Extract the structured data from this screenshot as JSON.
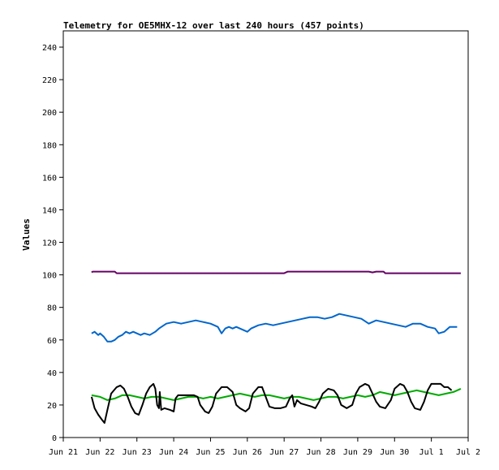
{
  "chart_data": {
    "type": "line",
    "title": "Telemetry for OE5MHX-12 over last 240 hours (457 points)",
    "xlabel": "",
    "ylabel": "Values",
    "xlim": [
      0,
      11
    ],
    "ylim": [
      0,
      250
    ],
    "x_ticks": [
      {
        "x": 0,
        "label": "Jun 21"
      },
      {
        "x": 1,
        "label": "Jun 22"
      },
      {
        "x": 2,
        "label": "Jun 23"
      },
      {
        "x": 3,
        "label": "Jun 24"
      },
      {
        "x": 4,
        "label": "Jun 25"
      },
      {
        "x": 5,
        "label": "Jun 26"
      },
      {
        "x": 6,
        "label": "Jun 27"
      },
      {
        "x": 7,
        "label": "Jun 28"
      },
      {
        "x": 8,
        "label": "Jun 29"
      },
      {
        "x": 9,
        "label": "Jun 30"
      },
      {
        "x": 10,
        "label": "Jul 1"
      },
      {
        "x": 11,
        "label": "Jul 2"
      }
    ],
    "y_ticks": [
      0,
      20,
      40,
      60,
      80,
      100,
      120,
      140,
      160,
      180,
      200,
      220,
      240
    ],
    "grid": false,
    "legend": "none",
    "series": [
      {
        "color": "#660066",
        "points": [
          [
            0.77,
            101.5
          ],
          [
            0.8,
            102
          ],
          [
            1.4,
            102
          ],
          [
            1.45,
            101
          ],
          [
            6.0,
            101
          ],
          [
            6.1,
            102
          ],
          [
            8.3,
            102
          ],
          [
            8.4,
            101.5
          ],
          [
            8.5,
            102
          ],
          [
            8.7,
            102
          ],
          [
            8.75,
            101
          ],
          [
            10.8,
            101
          ]
        ]
      },
      {
        "color": "#0066cc",
        "points": [
          [
            0.77,
            64
          ],
          [
            0.85,
            65
          ],
          [
            0.95,
            63
          ],
          [
            1.0,
            64
          ],
          [
            1.1,
            62
          ],
          [
            1.2,
            59
          ],
          [
            1.3,
            59
          ],
          [
            1.4,
            60
          ],
          [
            1.5,
            62
          ],
          [
            1.6,
            63
          ],
          [
            1.7,
            65
          ],
          [
            1.8,
            64
          ],
          [
            1.9,
            65
          ],
          [
            2.0,
            64
          ],
          [
            2.1,
            63
          ],
          [
            2.2,
            64
          ],
          [
            2.35,
            63
          ],
          [
            2.5,
            65
          ],
          [
            2.6,
            67
          ],
          [
            2.8,
            70
          ],
          [
            3.0,
            71
          ],
          [
            3.2,
            70
          ],
          [
            3.4,
            71
          ],
          [
            3.6,
            72
          ],
          [
            3.8,
            71
          ],
          [
            4.0,
            70
          ],
          [
            4.2,
            68
          ],
          [
            4.3,
            64
          ],
          [
            4.4,
            67
          ],
          [
            4.5,
            68
          ],
          [
            4.6,
            67
          ],
          [
            4.7,
            68
          ],
          [
            4.8,
            67
          ],
          [
            5.0,
            65
          ],
          [
            5.1,
            67
          ],
          [
            5.3,
            69
          ],
          [
            5.5,
            70
          ],
          [
            5.7,
            69
          ],
          [
            5.9,
            70
          ],
          [
            6.1,
            71
          ],
          [
            6.3,
            72
          ],
          [
            6.5,
            73
          ],
          [
            6.7,
            74
          ],
          [
            6.9,
            74
          ],
          [
            7.1,
            73
          ],
          [
            7.3,
            74
          ],
          [
            7.5,
            76
          ],
          [
            7.7,
            75
          ],
          [
            7.9,
            74
          ],
          [
            8.1,
            73
          ],
          [
            8.3,
            70
          ],
          [
            8.5,
            72
          ],
          [
            8.7,
            71
          ],
          [
            8.9,
            70
          ],
          [
            9.1,
            69
          ],
          [
            9.3,
            68
          ],
          [
            9.5,
            70
          ],
          [
            9.7,
            70
          ],
          [
            9.9,
            68
          ],
          [
            10.1,
            67
          ],
          [
            10.2,
            64
          ],
          [
            10.35,
            65
          ],
          [
            10.5,
            68
          ],
          [
            10.7,
            68
          ]
        ]
      },
      {
        "color": "#00aa00",
        "points": [
          [
            0.77,
            26
          ],
          [
            1.0,
            25
          ],
          [
            1.2,
            23
          ],
          [
            1.4,
            24
          ],
          [
            1.6,
            26
          ],
          [
            1.8,
            26
          ],
          [
            2.0,
            25
          ],
          [
            2.2,
            24
          ],
          [
            2.4,
            25
          ],
          [
            2.6,
            25
          ],
          [
            2.8,
            24
          ],
          [
            3.0,
            23
          ],
          [
            3.2,
            24
          ],
          [
            3.4,
            25
          ],
          [
            3.6,
            25
          ],
          [
            3.8,
            24
          ],
          [
            4.0,
            25
          ],
          [
            4.2,
            24
          ],
          [
            4.4,
            25
          ],
          [
            4.6,
            26
          ],
          [
            4.8,
            27
          ],
          [
            5.0,
            26
          ],
          [
            5.2,
            25
          ],
          [
            5.4,
            26
          ],
          [
            5.6,
            26
          ],
          [
            5.8,
            25
          ],
          [
            6.0,
            24
          ],
          [
            6.2,
            25
          ],
          [
            6.4,
            25
          ],
          [
            6.6,
            24
          ],
          [
            6.8,
            23
          ],
          [
            7.0,
            24
          ],
          [
            7.2,
            25
          ],
          [
            7.4,
            25
          ],
          [
            7.6,
            24
          ],
          [
            7.8,
            25
          ],
          [
            8.0,
            26
          ],
          [
            8.2,
            25
          ],
          [
            8.4,
            26
          ],
          [
            8.6,
            28
          ],
          [
            8.8,
            27
          ],
          [
            9.0,
            26
          ],
          [
            9.2,
            27
          ],
          [
            9.4,
            28
          ],
          [
            9.6,
            29
          ],
          [
            9.8,
            28
          ],
          [
            10.0,
            27
          ],
          [
            10.2,
            26
          ],
          [
            10.4,
            27
          ],
          [
            10.6,
            28
          ],
          [
            10.8,
            30
          ]
        ]
      },
      {
        "color": "#000000",
        "points": [
          [
            0.77,
            25
          ],
          [
            0.85,
            18
          ],
          [
            0.95,
            14
          ],
          [
            1.05,
            11
          ],
          [
            1.12,
            9
          ],
          [
            1.2,
            17
          ],
          [
            1.3,
            27
          ],
          [
            1.45,
            31
          ],
          [
            1.55,
            32
          ],
          [
            1.65,
            30
          ],
          [
            1.75,
            25
          ],
          [
            1.85,
            19
          ],
          [
            1.95,
            15
          ],
          [
            2.05,
            14
          ],
          [
            2.15,
            20
          ],
          [
            2.25,
            27
          ],
          [
            2.35,
            31
          ],
          [
            2.45,
            33
          ],
          [
            2.5,
            30
          ],
          [
            2.55,
            20
          ],
          [
            2.6,
            18
          ],
          [
            2.62,
            28
          ],
          [
            2.66,
            17
          ],
          [
            2.75,
            18
          ],
          [
            2.9,
            17
          ],
          [
            3.0,
            16
          ],
          [
            3.05,
            24
          ],
          [
            3.12,
            26
          ],
          [
            3.3,
            26
          ],
          [
            3.45,
            26
          ],
          [
            3.55,
            26
          ],
          [
            3.65,
            25
          ],
          [
            3.72,
            20
          ],
          [
            3.85,
            16
          ],
          [
            3.95,
            15
          ],
          [
            4.05,
            19
          ],
          [
            4.15,
            27
          ],
          [
            4.3,
            31
          ],
          [
            4.45,
            31
          ],
          [
            4.6,
            28
          ],
          [
            4.7,
            20
          ],
          [
            4.8,
            18
          ],
          [
            4.95,
            16
          ],
          [
            5.05,
            18
          ],
          [
            5.15,
            27
          ],
          [
            5.3,
            31
          ],
          [
            5.4,
            31
          ],
          [
            5.5,
            25
          ],
          [
            5.6,
            19
          ],
          [
            5.75,
            18
          ],
          [
            5.9,
            18
          ],
          [
            6.05,
            19
          ],
          [
            6.15,
            24
          ],
          [
            6.22,
            26
          ],
          [
            6.28,
            19
          ],
          [
            6.35,
            23
          ],
          [
            6.45,
            21
          ],
          [
            6.6,
            20
          ],
          [
            6.75,
            19
          ],
          [
            6.85,
            18
          ],
          [
            6.95,
            22
          ],
          [
            7.05,
            27
          ],
          [
            7.2,
            30
          ],
          [
            7.35,
            29
          ],
          [
            7.45,
            26
          ],
          [
            7.55,
            20
          ],
          [
            7.7,
            18
          ],
          [
            7.85,
            20
          ],
          [
            7.95,
            27
          ],
          [
            8.05,
            31
          ],
          [
            8.2,
            33
          ],
          [
            8.3,
            32
          ],
          [
            8.4,
            27
          ],
          [
            8.5,
            22
          ],
          [
            8.6,
            19
          ],
          [
            8.75,
            18
          ],
          [
            8.9,
            23
          ],
          [
            9.0,
            30
          ],
          [
            9.15,
            33
          ],
          [
            9.25,
            32
          ],
          [
            9.35,
            28
          ],
          [
            9.45,
            22
          ],
          [
            9.55,
            18
          ],
          [
            9.7,
            17
          ],
          [
            9.8,
            22
          ],
          [
            9.9,
            29
          ],
          [
            10.0,
            33
          ],
          [
            10.15,
            33
          ],
          [
            10.25,
            33
          ],
          [
            10.35,
            31
          ],
          [
            10.45,
            31
          ],
          [
            10.55,
            29
          ]
        ]
      }
    ]
  }
}
